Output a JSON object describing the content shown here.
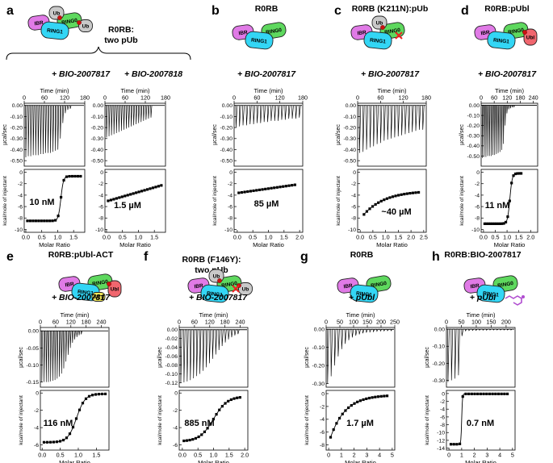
{
  "colors": {
    "IBR": "#e07ae6",
    "RING1": "#33d6f5",
    "RING0": "#5ed85e",
    "Ub": "#c9c9c9",
    "Ubl": "#f0666e",
    "ACT": "#f2e85a",
    "phospho": "#cc1111",
    "cross": "#ee2222",
    "compound": "#b04dd0"
  },
  "chart_data": [
    {
      "type": "isothermal_titration_calorimetry",
      "panel": "a",
      "title": "R0RB: two pUb",
      "subtitle": "+ BIO-2007817",
      "cartoon": {
        "domains": [
          "IBR",
          "RING1",
          "RING0",
          "Ub",
          "Ub"
        ],
        "phospho": true
      },
      "thermogram": {
        "xlabel": "Time (min)",
        "ylabel": "µcal/sec",
        "xlim": [
          0,
          180
        ],
        "xticks": [
          0,
          60,
          120,
          180
        ],
        "ylim": [
          -0.55,
          0.02
        ],
        "yticks": [
          0.0,
          -0.1,
          -0.2,
          -0.3,
          -0.4,
          -0.5
        ],
        "n_injections": 19,
        "inject_start": 4,
        "inject_end": 136,
        "peaks": [
          -0.47,
          -0.46,
          -0.46,
          -0.45,
          -0.45,
          -0.45,
          -0.44,
          -0.44,
          -0.43,
          -0.43,
          -0.43,
          -0.42,
          -0.41,
          -0.4,
          -0.3,
          -0.16,
          -0.07,
          -0.04,
          -0.03
        ]
      },
      "isotherm": {
        "xlabel": "Molar Ratio",
        "ylabel": "kcal/mole of injectant",
        "xlim": [
          -0.05,
          1.85
        ],
        "xticks": [
          0.0,
          0.5,
          1.0,
          1.5
        ],
        "ylim": [
          -10.5,
          0.5
        ],
        "yticks": [
          0,
          -2,
          -4,
          -6,
          -8,
          -10
        ],
        "model": {
          "shape": "sigmoid",
          "base": -8.5,
          "top": -0.7,
          "mid": 1.1,
          "w": 0.04,
          "xmin": 0.05,
          "xmax": 1.72
        },
        "n_points": 20
      },
      "annotation": "10 nM"
    },
    {
      "type": "isothermal_titration_calorimetry",
      "panel": "",
      "title": "",
      "subtitle": "+ BIO-2007818",
      "thermogram": {
        "xlabel": "Time (min)",
        "ylabel": "",
        "xlim": [
          0,
          180
        ],
        "xticks": [
          0,
          60,
          120,
          180
        ],
        "ylim": [
          -0.55,
          0.02
        ],
        "yticks": [
          0.0,
          -0.1,
          -0.2,
          -0.3,
          -0.4,
          -0.5
        ],
        "n_injections": 19,
        "inject_start": 4,
        "inject_end": 136,
        "peaks": [
          -0.29,
          -0.28,
          -0.27,
          -0.26,
          -0.25,
          -0.24,
          -0.23,
          -0.22,
          -0.21,
          -0.2,
          -0.19,
          -0.18,
          -0.17,
          -0.16,
          -0.15,
          -0.14,
          -0.13,
          -0.12,
          -0.11
        ]
      },
      "isotherm": {
        "xlabel": "Molar Ratio",
        "ylabel": "",
        "xlim": [
          -0.05,
          1.85
        ],
        "xticks": [
          0.0,
          0.5,
          1.0,
          1.5
        ],
        "ylim": [
          -10.5,
          0.5
        ],
        "yticks": [
          0,
          -2,
          -4,
          -6,
          -8,
          -10
        ],
        "model": {
          "shape": "linear",
          "y0": -5.0,
          "y1": -2.3,
          "xmin": 0.05,
          "xmax": 1.72
        },
        "n_points": 20
      },
      "annotation": "1.5 µM"
    },
    {
      "type": "isothermal_titration_calorimetry",
      "panel": "b",
      "title": "R0RB",
      "subtitle": "+ BIO-2007817",
      "cartoon": {
        "domains": [
          "IBR",
          "RING1",
          "RING0"
        ]
      },
      "thermogram": {
        "xlabel": "Time (min)",
        "ylabel": "µcal/sec",
        "xlim": [
          0,
          180
        ],
        "xticks": [
          0,
          60,
          120,
          180
        ],
        "ylim": [
          -0.55,
          0.02
        ],
        "yticks": [
          0.0,
          -0.1,
          -0.2,
          -0.3,
          -0.4,
          -0.5
        ],
        "n_injections": 19,
        "inject_start": 4,
        "inject_end": 170,
        "peaks": [
          -0.2,
          -0.19,
          -0.18,
          -0.18,
          -0.17,
          -0.17,
          -0.16,
          -0.16,
          -0.15,
          -0.15,
          -0.14,
          -0.14,
          -0.14,
          -0.13,
          -0.13,
          -0.12,
          -0.12,
          -0.12,
          -0.11
        ]
      },
      "isotherm": {
        "xlabel": "Molar Ratio",
        "ylabel": "kcal/mole of injectant",
        "xlim": [
          -0.1,
          2.1
        ],
        "xticks": [
          0.0,
          0.5,
          1.0,
          1.5,
          2.0
        ],
        "ylim": [
          -10.5,
          0.5
        ],
        "yticks": [
          0,
          -2,
          -4,
          -6,
          -8,
          -10
        ],
        "model": {
          "shape": "linear",
          "y0": -3.6,
          "y1": -2.2,
          "xmin": 0.05,
          "xmax": 1.85
        },
        "n_points": 20
      },
      "annotation": "85 µM"
    },
    {
      "type": "isothermal_titration_calorimetry",
      "panel": "c",
      "title": "R0RB (K211N):pUb",
      "subtitle": "+ BIO-2007817",
      "cartoon": {
        "domains": [
          "IBR",
          "RING1",
          "RING0",
          "Ub"
        ],
        "phospho": true,
        "cross": true
      },
      "thermogram": {
        "xlabel": "Time (min)",
        "ylabel": "µcal/sec",
        "xlim": [
          0,
          180
        ],
        "xticks": [
          0,
          60,
          120,
          180
        ],
        "ylim": [
          -0.55,
          0.02
        ],
        "yticks": [
          0.0,
          -0.1,
          -0.2,
          -0.3,
          -0.4,
          -0.5
        ],
        "n_injections": 19,
        "inject_start": 4,
        "inject_end": 170,
        "peaks": [
          -0.43,
          -0.42,
          -0.4,
          -0.38,
          -0.37,
          -0.35,
          -0.34,
          -0.32,
          -0.31,
          -0.3,
          -0.29,
          -0.28,
          -0.27,
          -0.26,
          -0.25,
          -0.24,
          -0.23,
          -0.22,
          -0.22
        ]
      },
      "isotherm": {
        "xlabel": "Molar Ratio",
        "ylabel": "kcal/mole of injectant",
        "xlim": [
          -0.1,
          2.6
        ],
        "xticks": [
          0.0,
          0.5,
          1.0,
          1.5,
          2.0,
          2.5
        ],
        "ylim": [
          -10.5,
          0.5
        ],
        "yticks": [
          0,
          -2,
          -4,
          -6,
          -8,
          -10
        ],
        "model": {
          "shape": "exp",
          "a": -3.2,
          "b": -5.0,
          "k": 1.2,
          "xmin": 0.15,
          "xmax": 2.3
        },
        "n_points": 20
      },
      "annotation": "~40 µM"
    },
    {
      "type": "isothermal_titration_calorimetry",
      "panel": "d",
      "title": "R0RB:pUbl",
      "subtitle": "+ BIO-2007817",
      "cartoon": {
        "domains": [
          "IBR",
          "RING1",
          "RING0",
          "Ubl"
        ],
        "phospho": true
      },
      "thermogram": {
        "xlabel": "Time (min)",
        "ylabel": "µcal/sec",
        "xlim": [
          0,
          260
        ],
        "xticks": [
          0,
          60,
          120,
          180,
          240
        ],
        "ylim": [
          -0.6,
          0.02
        ],
        "yticks": [
          0.0,
          -0.1,
          -0.2,
          -0.3,
          -0.4,
          -0.5
        ],
        "n_injections": 19,
        "inject_start": 5,
        "inject_end": 150,
        "peaks": [
          -0.52,
          -0.51,
          -0.51,
          -0.5,
          -0.5,
          -0.5,
          -0.49,
          -0.49,
          -0.48,
          -0.47,
          -0.46,
          -0.44,
          -0.38,
          -0.2,
          -0.08,
          -0.04,
          -0.03,
          -0.02,
          -0.02
        ]
      },
      "isotherm": {
        "xlabel": "Molar Ratio",
        "ylabel": "kcal/mole of injectant",
        "xlim": [
          -0.1,
          2.3
        ],
        "xticks": [
          0.0,
          0.5,
          1.0,
          1.5,
          2.0
        ],
        "ylim": [
          -10.5,
          0.5
        ],
        "yticks": [
          0,
          -2,
          -4,
          -6,
          -8,
          -10
        ],
        "model": {
          "shape": "sigmoid",
          "base": -9.0,
          "top": -0.2,
          "mid": 1.12,
          "w": 0.05,
          "xmin": 0.05,
          "xmax": 1.6
        },
        "n_points": 20
      },
      "annotation": "11 nM"
    },
    {
      "type": "isothermal_titration_calorimetry",
      "panel": "e",
      "title": "R0RB:pUbl-ACT",
      "subtitle": "+ BIO-2007817",
      "cartoon": {
        "domains": [
          "IBR",
          "RING1",
          "RING0",
          "Ubl",
          "ACT"
        ],
        "phospho": true
      },
      "thermogram": {
        "xlabel": "Time (min)",
        "ylabel": "µcal/sec",
        "xlim": [
          0,
          270
        ],
        "xticks": [
          0,
          60,
          120,
          180,
          240
        ],
        "ylim": [
          -0.165,
          0.01
        ],
        "yticks": [
          0.0,
          -0.05,
          -0.1,
          -0.15
        ],
        "n_injections": 19,
        "inject_start": 5,
        "inject_end": 160,
        "peaks": [
          -0.15,
          -0.15,
          -0.15,
          -0.15,
          -0.148,
          -0.146,
          -0.144,
          -0.14,
          -0.134,
          -0.125,
          -0.11,
          -0.09,
          -0.07,
          -0.05,
          -0.035,
          -0.025,
          -0.018,
          -0.013,
          -0.01
        ]
      },
      "isotherm": {
        "xlabel": "Molar Ratio",
        "ylabel": "kcal/mole of injectant",
        "xlim": [
          -0.05,
          1.85
        ],
        "xticks": [
          0.0,
          0.5,
          1.0,
          1.5
        ],
        "ylim": [
          -6.6,
          0.3
        ],
        "yticks": [
          0,
          -2,
          -4,
          -6
        ],
        "model": {
          "shape": "sigmoid",
          "base": -5.7,
          "top": -0.1,
          "mid": 0.95,
          "w": 0.12,
          "xmin": 0.05,
          "xmax": 1.75
        },
        "n_points": 20
      },
      "annotation": "116 nM"
    },
    {
      "type": "isothermal_titration_calorimetry",
      "panel": "f",
      "title": "R0RB (F146Y): two pUb",
      "subtitle": "+ BIO-2007817",
      "cartoon": {
        "domains": [
          "IBR",
          "RING1",
          "RING0",
          "Ub",
          "Ub"
        ],
        "phospho": true,
        "cross": true
      },
      "thermogram": {
        "xlabel": "Time (min)",
        "ylabel": "µcal/sec",
        "xlim": [
          0,
          270
        ],
        "xticks": [
          0,
          60,
          120,
          180,
          240
        ],
        "ylim": [
          -0.13,
          0.005
        ],
        "yticks": [
          0.0,
          -0.02,
          -0.04,
          -0.06,
          -0.08,
          -0.1,
          -0.12
        ],
        "n_injections": 19,
        "inject_start": 5,
        "inject_end": 230,
        "peaks": [
          -0.12,
          -0.119,
          -0.117,
          -0.114,
          -0.11,
          -0.105,
          -0.1,
          -0.093,
          -0.085,
          -0.076,
          -0.066,
          -0.056,
          -0.046,
          -0.037,
          -0.029,
          -0.022,
          -0.017,
          -0.013,
          -0.01
        ]
      },
      "isotherm": {
        "xlabel": "Molar Ratio",
        "ylabel": "kcal/mole of injectant",
        "xlim": [
          -0.1,
          2.1
        ],
        "xticks": [
          0.0,
          0.5,
          1.0,
          1.5,
          2.0
        ],
        "ylim": [
          -6.6,
          0.3
        ],
        "yticks": [
          0,
          -2,
          -4,
          -6
        ],
        "model": {
          "shape": "sigmoid",
          "base": -5.6,
          "top": -0.4,
          "mid": 1.0,
          "w": 0.22,
          "xmin": 0.05,
          "xmax": 1.85
        },
        "n_points": 20
      },
      "annotation": "885 nM"
    },
    {
      "type": "isothermal_titration_calorimetry",
      "panel": "g",
      "title": "R0RB",
      "subtitle": "+ pUbl",
      "cartoon": {
        "domains": [
          "IBR",
          "RING1",
          "RING0"
        ]
      },
      "thermogram": {
        "xlabel": "Time (min)",
        "ylabel": "µcal/sec",
        "xlim": [
          0,
          250
        ],
        "xticks": [
          0,
          50,
          100,
          150,
          200,
          250
        ],
        "ylim": [
          -0.32,
          0.01
        ],
        "yticks": [
          0.0,
          -0.1,
          -0.2,
          -0.3
        ],
        "n_injections": 19,
        "inject_start": 4,
        "inject_end": 235,
        "peaks": [
          -0.3,
          -0.26,
          -0.2,
          -0.15,
          -0.11,
          -0.08,
          -0.06,
          -0.045,
          -0.035,
          -0.028,
          -0.022,
          -0.018,
          -0.015,
          -0.013,
          -0.011,
          -0.01,
          -0.009,
          -0.008,
          -0.008
        ]
      },
      "isotherm": {
        "xlabel": "Molar Ratio",
        "ylabel": "kcal/mole of injectant",
        "xlim": [
          -0.2,
          5.2
        ],
        "xticks": [
          0,
          1,
          2,
          3,
          4,
          5
        ],
        "ylim": [
          -8.8,
          0.5
        ],
        "yticks": [
          0,
          -2,
          -4,
          -6,
          -8
        ],
        "model": {
          "shape": "exp",
          "a": -0.2,
          "b": -7.5,
          "k": 0.85,
          "xmin": 0.15,
          "xmax": 4.6
        },
        "n_points": 20
      },
      "annotation": "1.7 µM"
    },
    {
      "type": "isothermal_titration_calorimetry",
      "panel": "h",
      "title": "R0RB:BIO-2007817",
      "subtitle": "+ pUbl",
      "cartoon": {
        "domains": [
          "IBR",
          "RING1",
          "RING0"
        ],
        "compound": true
      },
      "thermogram": {
        "xlabel": "Time (min)",
        "ylabel": "µcal/sec",
        "xlim": [
          0,
          230
        ],
        "xticks": [
          0,
          50,
          100,
          150,
          200
        ],
        "ylim": [
          -0.34,
          0.01
        ],
        "yticks": [
          0.0,
          -0.1,
          -0.2,
          -0.3
        ],
        "n_injections": 19,
        "inject_start": 4,
        "inject_end": 215,
        "peaks": [
          -0.31,
          -0.3,
          -0.29,
          -0.27,
          -0.04,
          -0.01,
          -0.008,
          -0.007,
          -0.007,
          -0.006,
          -0.006,
          -0.006,
          -0.005,
          -0.005,
          -0.005,
          -0.005,
          -0.005,
          -0.005,
          -0.005
        ]
      },
      "isotherm": {
        "xlabel": "Molar Ratio",
        "ylabel": "kcal/mole of injectant",
        "xlim": [
          -0.2,
          5.2
        ],
        "xticks": [
          0,
          1,
          2,
          3,
          4,
          5
        ],
        "ylim": [
          -14.5,
          0.8
        ],
        "yticks": [
          0,
          -2,
          -4,
          -6,
          -8,
          -10,
          -12,
          -14
        ],
        "model": {
          "shape": "sigmoid",
          "base": -13.0,
          "top": -0.1,
          "mid": 1.0,
          "w": 0.03,
          "xmin": 0.15,
          "xmax": 4.6
        },
        "n_points": 20
      },
      "annotation": "0.7 nM"
    }
  ]
}
